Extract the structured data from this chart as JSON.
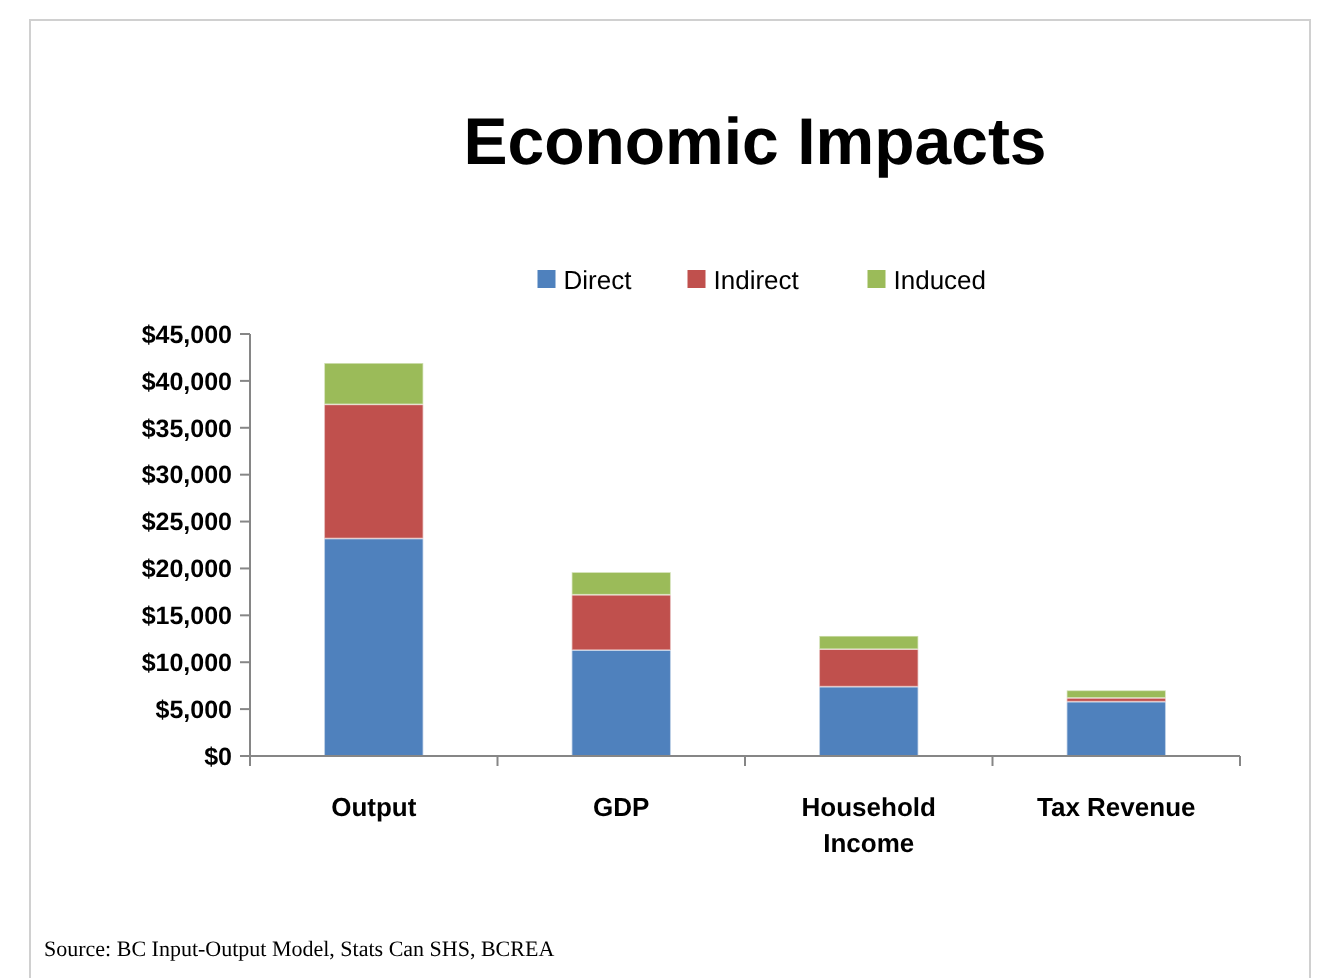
{
  "chart_data": {
    "type": "bar",
    "title": "Economic Impacts",
    "stacked": true,
    "categories": [
      "Output",
      "GDP",
      "Household Income",
      "Tax Revenue"
    ],
    "series": [
      {
        "name": "Direct",
        "color": "#4f81bd",
        "values": [
          23200,
          11300,
          7400,
          5800
        ]
      },
      {
        "name": "Indirect",
        "color": "#c0504d",
        "values": [
          14300,
          5900,
          4000,
          400
        ]
      },
      {
        "name": "Induced",
        "color": "#9bbb59",
        "values": [
          4400,
          2400,
          1400,
          800
        ]
      }
    ],
    "ylim": [
      0,
      45000
    ],
    "yticks": [
      {
        "value": 0,
        "label": "$0"
      },
      {
        "value": 5000,
        "label": "$5,000"
      },
      {
        "value": 10000,
        "label": "$10,000"
      },
      {
        "value": 15000,
        "label": "$15,000"
      },
      {
        "value": 20000,
        "label": "$20,000"
      },
      {
        "value": 25000,
        "label": "$25,000"
      },
      {
        "value": 30000,
        "label": "$30,000"
      },
      {
        "value": 35000,
        "label": "$35,000"
      },
      {
        "value": 40000,
        "label": "$40,000"
      },
      {
        "value": 45000,
        "label": "$45,000"
      }
    ],
    "grid": false,
    "legend": "top",
    "annotations": [
      "Source: BC Input-Output Model, Stats Can SHS, BCREA"
    ]
  }
}
